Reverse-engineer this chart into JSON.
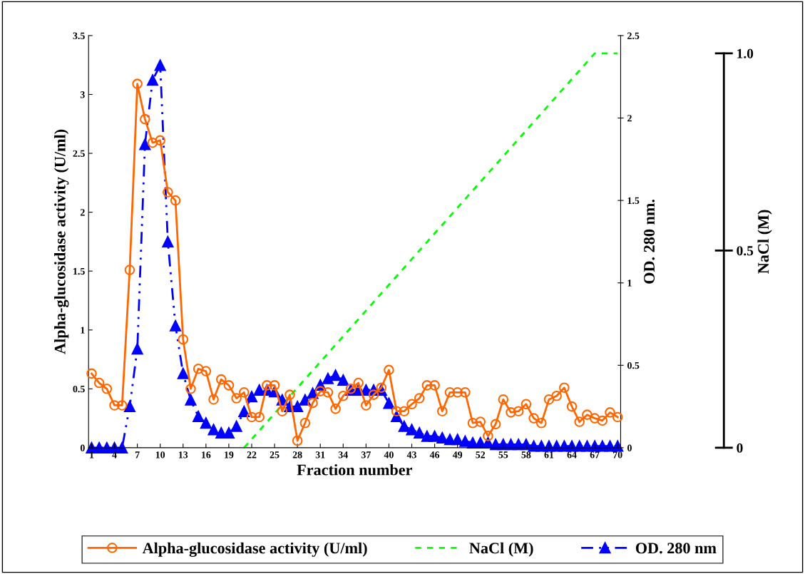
{
  "chart_data": {
    "type": "line",
    "xlabel": "Fraction number",
    "ylabel": "Alpha-glucosidase activity (U/ml)",
    "y2label": "OD. 280 nm.",
    "y3label": "NaCl (M)",
    "xlim": [
      0.6,
      70.4
    ],
    "xticks": [
      1,
      4,
      7,
      10,
      13,
      16,
      19,
      22,
      25,
      28,
      31,
      34,
      37,
      40,
      43,
      46,
      49,
      52,
      55,
      58,
      61,
      64,
      67,
      70
    ],
    "ylim": [
      0,
      3.5
    ],
    "yticks": [
      0,
      0.5,
      1,
      1.5,
      2,
      2.5,
      3,
      3.5
    ],
    "y2lim": [
      0,
      2.5
    ],
    "y2ticks": [
      0,
      0.5,
      1,
      1.5,
      2,
      2.5
    ],
    "y3lim": [
      0,
      1.045
    ],
    "y3ticks": [
      0,
      0.5,
      {
        "value": 1,
        "label": "1.0"
      }
    ],
    "legend": "bottom",
    "grid": false,
    "series": [
      {
        "name": "Alpha-glucosidase activity (U/ml)",
        "color": "#ff6600",
        "marker": "circle",
        "line_style": "solid",
        "axis": "y",
        "x": [
          1,
          2,
          3,
          4,
          5,
          6,
          7,
          8,
          9,
          10,
          11,
          12,
          13,
          14,
          15,
          16,
          17,
          18,
          19,
          20,
          21,
          22,
          23,
          24,
          25,
          26,
          27,
          28,
          29,
          30,
          31,
          32,
          33,
          34,
          35,
          36,
          37,
          38,
          39,
          40,
          41,
          42,
          43,
          44,
          45,
          46,
          47,
          48,
          49,
          50,
          51,
          52,
          53,
          54,
          55,
          56,
          57,
          58,
          59,
          60,
          61,
          62,
          63,
          64,
          65,
          66,
          67,
          68,
          69,
          70
        ],
        "values": [
          0.63,
          0.55,
          0.5,
          0.36,
          0.36,
          1.51,
          3.09,
          2.79,
          2.59,
          2.61,
          2.17,
          2.1,
          0.92,
          0.5,
          0.67,
          0.65,
          0.41,
          0.58,
          0.53,
          0.42,
          0.47,
          0.26,
          0.26,
          0.53,
          0.53,
          0.31,
          0.45,
          0.06,
          0.21,
          0.38,
          0.48,
          0.47,
          0.33,
          0.44,
          0.5,
          0.55,
          0.36,
          0.45,
          0.51,
          0.66,
          0.31,
          0.31,
          0.37,
          0.42,
          0.53,
          0.53,
          0.31,
          0.47,
          0.47,
          0.47,
          0.21,
          0.22,
          0.1,
          0.2,
          0.41,
          0.3,
          0.31,
          0.37,
          0.25,
          0.21,
          0.41,
          0.44,
          0.51,
          0.35,
          0.22,
          0.28,
          0.25,
          0.23,
          0.3,
          0.26
        ]
      },
      {
        "name": "NaCl (M)",
        "color": "#00ff00",
        "marker": "none",
        "line_style": "dashed",
        "axis": "y3",
        "x": [
          21,
          67,
          70
        ],
        "values": [
          0,
          1,
          1
        ]
      },
      {
        "name": "OD. 280 nm",
        "color": "#0000ff",
        "marker": "triangle",
        "line_style": "dashdot",
        "axis": "y2",
        "x": [
          1,
          2,
          3,
          4,
          5,
          6,
          7,
          8,
          9,
          10,
          11,
          12,
          13,
          14,
          15,
          16,
          17,
          18,
          19,
          20,
          21,
          22,
          23,
          24,
          25,
          26,
          27,
          28,
          29,
          30,
          31,
          32,
          33,
          34,
          35,
          36,
          37,
          38,
          39,
          40,
          41,
          42,
          43,
          44,
          45,
          46,
          47,
          48,
          49,
          50,
          51,
          52,
          53,
          54,
          55,
          56,
          57,
          58,
          59,
          60,
          61,
          62,
          63,
          64,
          65,
          66,
          67,
          68,
          69,
          70
        ],
        "values": [
          0,
          0,
          0,
          0,
          0,
          0.25,
          0.6,
          1.84,
          2.23,
          2.32,
          1.25,
          0.74,
          0.45,
          0.29,
          0.19,
          0.15,
          0.11,
          0.09,
          0.09,
          0.13,
          0.22,
          0.31,
          0.35,
          0.35,
          0.34,
          0.29,
          0.25,
          0.25,
          0.29,
          0.33,
          0.38,
          0.42,
          0.44,
          0.41,
          0.35,
          0.35,
          0.35,
          0.35,
          0.35,
          0.27,
          0.19,
          0.13,
          0.11,
          0.09,
          0.07,
          0.07,
          0.06,
          0.05,
          0.05,
          0.04,
          0.03,
          0.03,
          0.03,
          0.02,
          0.02,
          0.02,
          0.02,
          0.02,
          0.01,
          0.01,
          0.01,
          0.01,
          0.01,
          0.01,
          0.01,
          0.01,
          0.01,
          0.01,
          0.01,
          0.01
        ]
      }
    ]
  }
}
